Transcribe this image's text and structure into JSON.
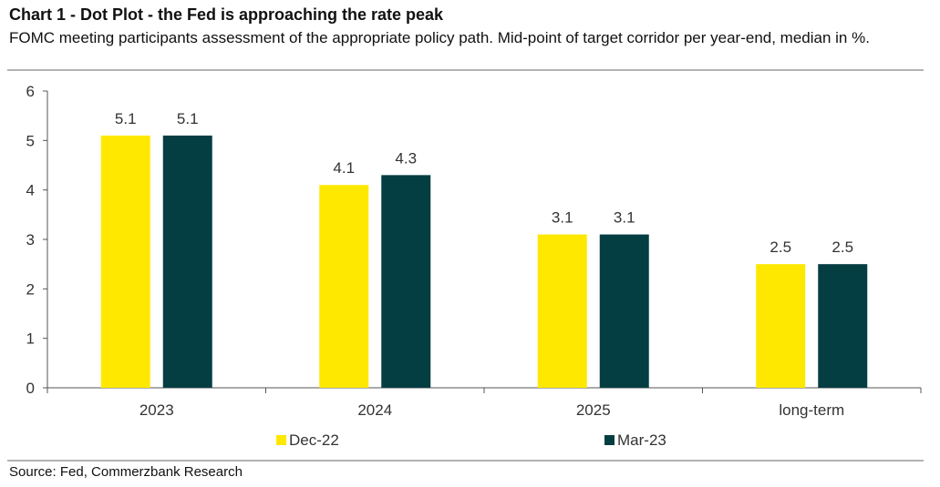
{
  "header": {
    "title": "Chart 1 - Dot Plot - the Fed is approaching the rate peak",
    "subtitle": "FOMC meeting participants assessment of the appropriate policy path. Mid-point of target corridor per year-end, median in %."
  },
  "footer": {
    "source": "Source: Fed, Commerzbank Research"
  },
  "colors": {
    "dec22": "#ffe800",
    "mar23": "#053e42",
    "axis": "#555555",
    "text": "#333333"
  },
  "chart_data": {
    "type": "bar",
    "categories": [
      "2023",
      "2024",
      "2025",
      "long-term"
    ],
    "series": [
      {
        "name": "Dec-22",
        "values": [
          5.1,
          4.1,
          3.1,
          2.5
        ]
      },
      {
        "name": "Mar-23",
        "values": [
          5.1,
          4.3,
          3.1,
          2.5
        ]
      }
    ],
    "value_labels": [
      [
        "5.1",
        "4.1",
        "3.1",
        "2.5"
      ],
      [
        "5.1",
        "4.3",
        "3.1",
        "2.5"
      ]
    ],
    "yticks": [
      "0",
      "1",
      "2",
      "3",
      "4",
      "5",
      "6"
    ],
    "ylim": [
      0,
      6
    ],
    "grid": false,
    "legend_position": "bottom",
    "xlabel": "",
    "ylabel": ""
  }
}
